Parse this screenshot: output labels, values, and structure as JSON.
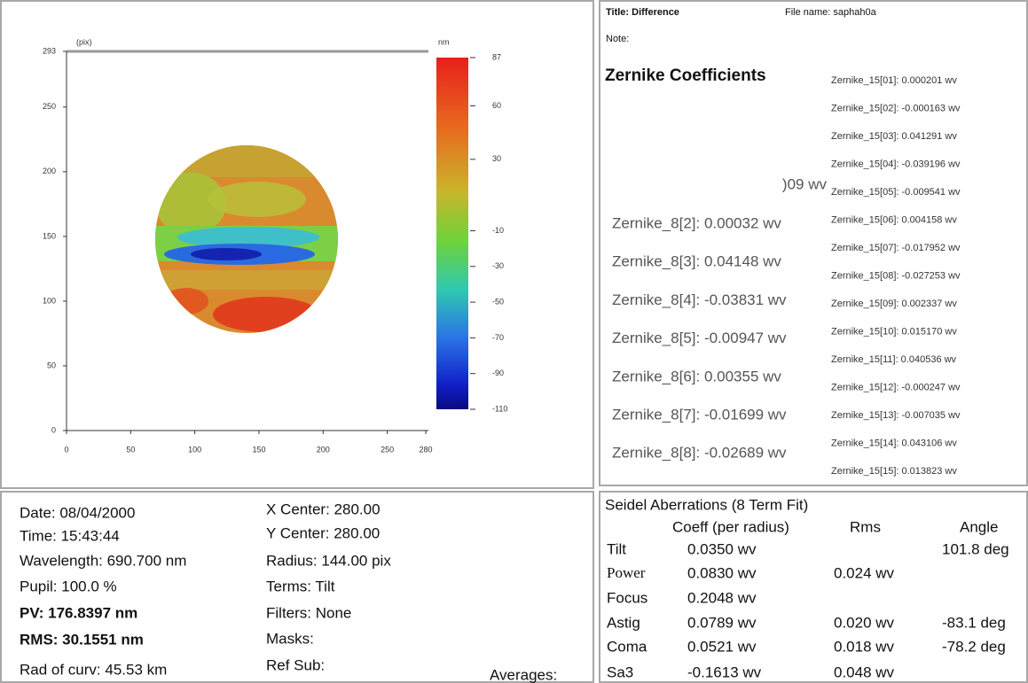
{
  "plot": {
    "unit_label": "(pix)",
    "colorbar_unit": "nm",
    "xlim": [
      0,
      280
    ],
    "ylim": [
      0,
      293
    ],
    "xticks": [
      0,
      50,
      100,
      150,
      200,
      250,
      280
    ],
    "yticks": [
      0,
      50,
      100,
      150,
      200,
      250,
      293
    ],
    "clim": [
      -110,
      87
    ],
    "cticks": [
      87,
      60,
      30,
      -10,
      -30,
      -50,
      -70,
      -90,
      -110
    ]
  },
  "header": {
    "title": "Title:  Difference",
    "file_name": "File name:  saphah0a",
    "note": "Note:"
  },
  "zernike": {
    "heading": "Zernike Coefficients",
    "partial": ")09 wv",
    "terms8": [
      "Zernike_8[2]: 0.00032 wv",
      "Zernike_8[3]: 0.04148 wv",
      "Zernike_8[4]: -0.03831 wv",
      "Zernike_8[5]: -0.00947 wv",
      "Zernike_8[6]: 0.00355 wv",
      "Zernike_8[7]: -0.01699 wv",
      "Zernike_8[8]: -0.02689 wv"
    ],
    "terms15": [
      "Zernike_15[01]: 0.000201 wv",
      "Zernike_15[02]: -0.000163 wv",
      "Zernike_15[03]: 0.041291 wv",
      "Zernike_15[04]: -0.039196 wv",
      "Zernike_15[05]: -0.009541 wv",
      "Zernike_15[06]: 0.004158 wv",
      "Zernike_15[07]: -0.017952 wv",
      "Zernike_15[08]: -0.027253 wv",
      "Zernike_15[09]: 0.002337 wv",
      "Zernike_15[10]: 0.015170 wv",
      "Zernike_15[11]: 0.040536 wv",
      "Zernike_15[12]: -0.000247 wv",
      "Zernike_15[13]: -0.007035 wv",
      "Zernike_15[14]: 0.043106 wv",
      "Zernike_15[15]: 0.013823 wv"
    ]
  },
  "info": {
    "left": [
      "Date:  08/04/2000",
      "Time:  15:43:44",
      "Wavelength: 690.700 nm",
      "Pupil: 100.0 %",
      "PV: 176.8397 nm",
      "RMS: 30.1551 nm",
      "Rad of curv: 45.53 km"
    ],
    "middle": [
      "X Center: 280.00",
      "Y Center: 280.00",
      "Radius: 144.00 pix",
      "Terms: Tilt",
      "Filters: None",
      "Masks:",
      "Ref Sub:"
    ],
    "averages": "Averages:"
  },
  "seidel": {
    "title": "Seidel Aberrations (8 Term Fit)",
    "columns": [
      "Coeff (per radius)",
      "Rms",
      "Angle"
    ],
    "rows": [
      {
        "name": "Tilt",
        "coeff": "0.0350 wv",
        "angle": "101.8 deg"
      },
      {
        "name": "Power",
        "coeff": "0.0830 wv",
        "rms": "0.024 wv"
      },
      {
        "name": "Focus",
        "coeff": "0.2048 wv"
      },
      {
        "name": "Astig",
        "coeff": "0.0789 wv",
        "rms": "0.020 wv",
        "angle": "-83.1 deg"
      },
      {
        "name": "Coma",
        "coeff": "0.0521 wv",
        "rms": "0.018 wv",
        "angle": "-78.2 deg"
      },
      {
        "name": "Sa3",
        "coeff": "-0.1613 wv",
        "rms": "0.048 wv"
      }
    ]
  }
}
